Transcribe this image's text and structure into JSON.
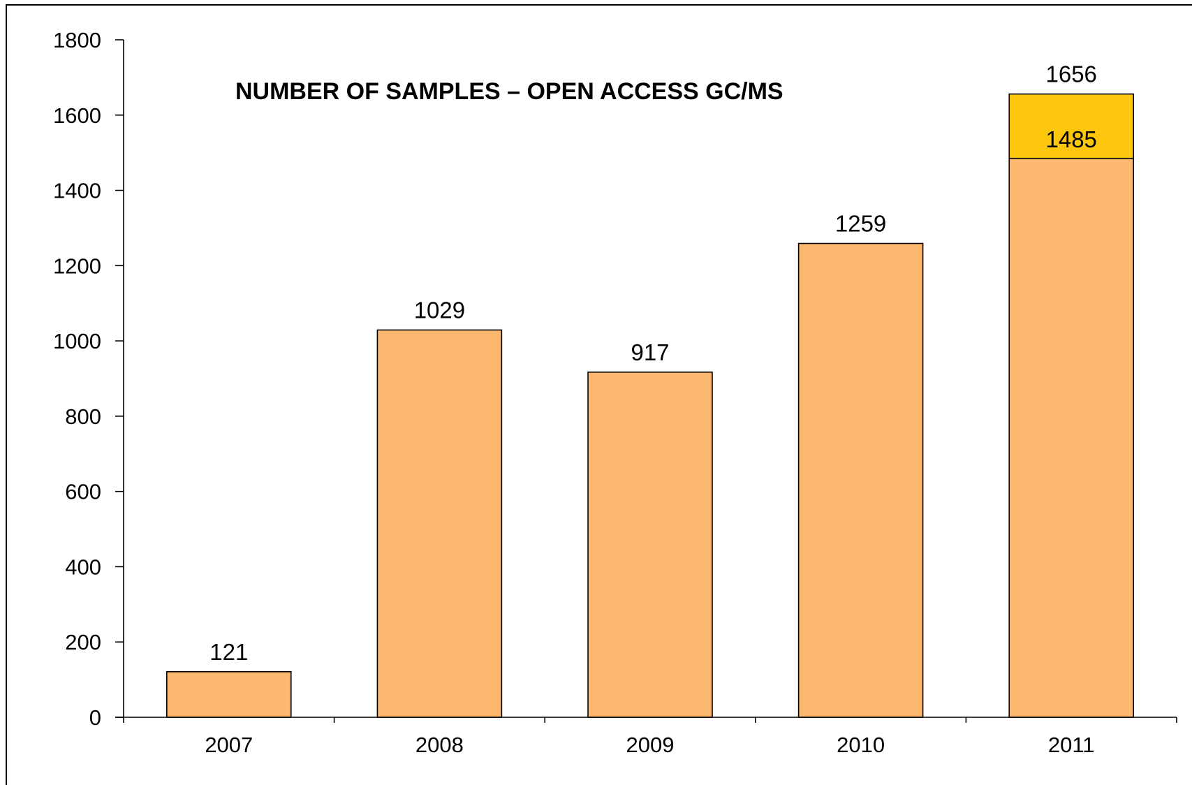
{
  "chart_data": {
    "type": "bar",
    "title": "NUMBER OF SAMPLES – OPEN ACCESS GC/MS",
    "xlabel": "",
    "ylabel": "",
    "categories": [
      "2007",
      "2008",
      "2009",
      "2010",
      "2011"
    ],
    "series": [
      {
        "values": [
          121,
          1029,
          917,
          1259,
          1485
        ],
        "labels": [
          "121",
          "1029",
          "917",
          "1259",
          "1485"
        ],
        "color": "#FDB870"
      },
      {
        "values": [
          0,
          0,
          0,
          0,
          171
        ],
        "labels": [
          "",
          "",
          "",
          "",
          "1656"
        ],
        "color": "#FDC70E"
      }
    ],
    "stacked": true,
    "ylim": [
      0,
      1800
    ],
    "yticks": [
      "0",
      "200",
      "400",
      "600",
      "800",
      "1000",
      "1200",
      "1400",
      "1600",
      "1800"
    ],
    "grid": false,
    "legend": "none"
  }
}
